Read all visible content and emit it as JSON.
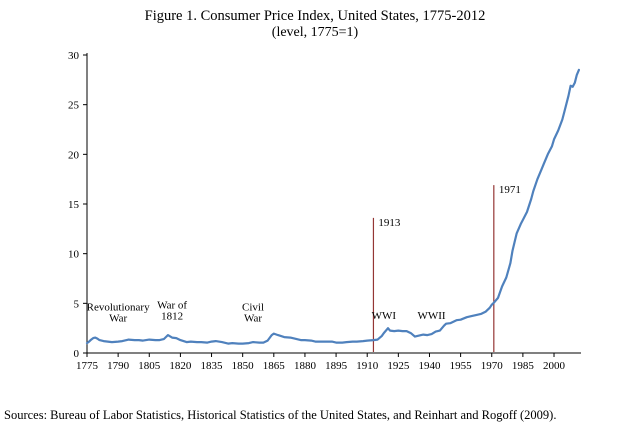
{
  "figure": {
    "title_line1": "Figure 1. Consumer Price Index, United States, 1775-2012",
    "title_line2": "(level, 1775=1)",
    "source": "Sources: Bureau of Labor Statistics, Historical Statistics of the United States, and Reinhart and Rogoff (2009)."
  },
  "chart_data": {
    "type": "line",
    "title": "Figure 1. Consumer Price Index, United States, 1775-2012",
    "subtitle": "(level, 1775=1)",
    "xlabel": "",
    "ylabel": "",
    "xlim": [
      1775,
      2013
    ],
    "ylim": [
      0,
      30
    ],
    "x_ticks": [
      1775,
      1790,
      1805,
      1820,
      1835,
      1850,
      1865,
      1880,
      1895,
      1910,
      1925,
      1940,
      1955,
      1970,
      1985,
      2000
    ],
    "y_ticks": [
      0,
      5,
      10,
      15,
      20,
      25,
      30
    ],
    "grid": false,
    "legend": false,
    "line_color": "#4F81BD",
    "series": [
      {
        "name": "CPI level (1775=1)",
        "points": [
          [
            1775,
            1.0
          ],
          [
            1776,
            1.15
          ],
          [
            1777,
            1.35
          ],
          [
            1778,
            1.5
          ],
          [
            1779,
            1.55
          ],
          [
            1780,
            1.45
          ],
          [
            1781,
            1.3
          ],
          [
            1783,
            1.2
          ],
          [
            1785,
            1.15
          ],
          [
            1787,
            1.1
          ],
          [
            1790,
            1.15
          ],
          [
            1792,
            1.2
          ],
          [
            1795,
            1.35
          ],
          [
            1798,
            1.3
          ],
          [
            1800,
            1.3
          ],
          [
            1802,
            1.25
          ],
          [
            1805,
            1.35
          ],
          [
            1808,
            1.3
          ],
          [
            1810,
            1.3
          ],
          [
            1812,
            1.4
          ],
          [
            1814,
            1.8
          ],
          [
            1816,
            1.55
          ],
          [
            1818,
            1.5
          ],
          [
            1820,
            1.3
          ],
          [
            1823,
            1.1
          ],
          [
            1825,
            1.15
          ],
          [
            1828,
            1.1
          ],
          [
            1830,
            1.1
          ],
          [
            1833,
            1.05
          ],
          [
            1835,
            1.15
          ],
          [
            1837,
            1.2
          ],
          [
            1840,
            1.1
          ],
          [
            1843,
            0.95
          ],
          [
            1845,
            1.0
          ],
          [
            1848,
            0.95
          ],
          [
            1850,
            0.95
          ],
          [
            1853,
            1.0
          ],
          [
            1855,
            1.1
          ],
          [
            1858,
            1.05
          ],
          [
            1860,
            1.05
          ],
          [
            1862,
            1.25
          ],
          [
            1864,
            1.8
          ],
          [
            1865,
            1.95
          ],
          [
            1867,
            1.8
          ],
          [
            1870,
            1.6
          ],
          [
            1873,
            1.55
          ],
          [
            1875,
            1.45
          ],
          [
            1878,
            1.3
          ],
          [
            1880,
            1.3
          ],
          [
            1883,
            1.25
          ],
          [
            1885,
            1.15
          ],
          [
            1888,
            1.15
          ],
          [
            1890,
            1.15
          ],
          [
            1893,
            1.15
          ],
          [
            1895,
            1.05
          ],
          [
            1898,
            1.05
          ],
          [
            1900,
            1.1
          ],
          [
            1903,
            1.15
          ],
          [
            1905,
            1.15
          ],
          [
            1908,
            1.2
          ],
          [
            1910,
            1.25
          ],
          [
            1913,
            1.3
          ],
          [
            1915,
            1.35
          ],
          [
            1917,
            1.7
          ],
          [
            1918,
            2.0
          ],
          [
            1920,
            2.5
          ],
          [
            1921,
            2.25
          ],
          [
            1923,
            2.2
          ],
          [
            1925,
            2.25
          ],
          [
            1927,
            2.2
          ],
          [
            1929,
            2.2
          ],
          [
            1931,
            2.0
          ],
          [
            1933,
            1.65
          ],
          [
            1935,
            1.75
          ],
          [
            1937,
            1.85
          ],
          [
            1939,
            1.8
          ],
          [
            1941,
            1.9
          ],
          [
            1943,
            2.15
          ],
          [
            1945,
            2.25
          ],
          [
            1947,
            2.75
          ],
          [
            1948,
            2.95
          ],
          [
            1950,
            3.0
          ],
          [
            1953,
            3.3
          ],
          [
            1955,
            3.35
          ],
          [
            1958,
            3.6
          ],
          [
            1960,
            3.7
          ],
          [
            1963,
            3.85
          ],
          [
            1965,
            3.95
          ],
          [
            1967,
            4.15
          ],
          [
            1969,
            4.55
          ],
          [
            1970,
            4.85
          ],
          [
            1971,
            5.05
          ],
          [
            1973,
            5.55
          ],
          [
            1975,
            6.7
          ],
          [
            1977,
            7.6
          ],
          [
            1979,
            9.05
          ],
          [
            1980,
            10.3
          ],
          [
            1982,
            12.05
          ],
          [
            1984,
            13.0
          ],
          [
            1985,
            13.4
          ],
          [
            1987,
            14.2
          ],
          [
            1989,
            15.5
          ],
          [
            1990,
            16.3
          ],
          [
            1992,
            17.5
          ],
          [
            1994,
            18.5
          ],
          [
            1995,
            19.0
          ],
          [
            1997,
            20.0
          ],
          [
            1999,
            20.8
          ],
          [
            2000,
            21.5
          ],
          [
            2002,
            22.4
          ],
          [
            2004,
            23.5
          ],
          [
            2005,
            24.3
          ],
          [
            2007,
            25.9
          ],
          [
            2008,
            26.9
          ],
          [
            2009,
            26.8
          ],
          [
            2010,
            27.2
          ],
          [
            2011,
            28.0
          ],
          [
            2012,
            28.5
          ]
        ]
      }
    ],
    "annotations": {
      "vline_color": "#943634",
      "vlines": [
        {
          "x": 1913,
          "y_top": 13.6,
          "label": "1913",
          "label_y": 12.8
        },
        {
          "x": 1971,
          "y_top": 16.9,
          "label": "1971",
          "label_y": 16.1
        }
      ],
      "events": [
        {
          "label_lines": [
            "Revolutionary",
            "War"
          ],
          "x": 1790,
          "y": 4.3
        },
        {
          "label_lines": [
            "War of",
            "1812"
          ],
          "x": 1816,
          "y": 4.5
        },
        {
          "label_lines": [
            "Civil",
            "War"
          ],
          "x": 1855,
          "y": 4.3
        },
        {
          "label_lines": [
            "WWI"
          ],
          "x": 1918,
          "y": 3.4
        },
        {
          "label_lines": [
            "WWII"
          ],
          "x": 1941,
          "y": 3.4
        }
      ]
    }
  }
}
